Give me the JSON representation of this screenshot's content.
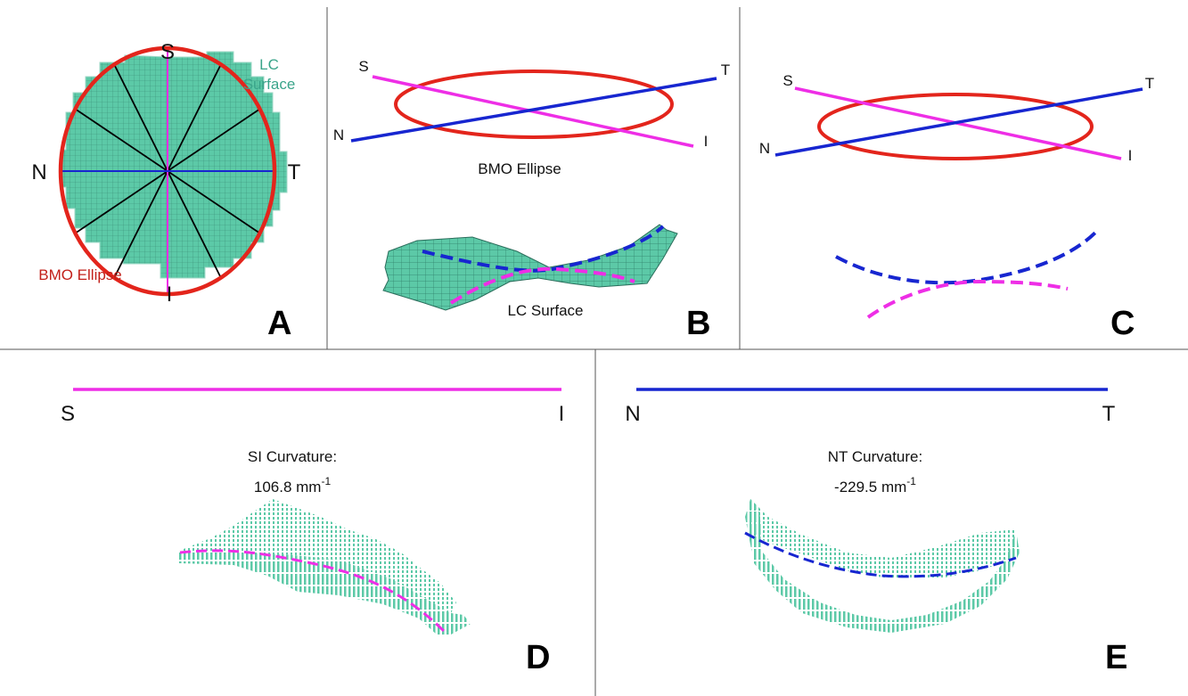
{
  "colors": {
    "lc_fill": "#5cc9a7",
    "lc_edge": "#3a8f78",
    "bmo_red": "#e3251c",
    "bmo_text": "#c2201a",
    "si_magenta": "#ee2ee6",
    "nt_blue": "#1726d0",
    "lc_text": "#3aa48a"
  },
  "panel_a": {
    "label_S": "S",
    "label_N": "N",
    "label_T": "T",
    "label_I": "I",
    "lc_surface_line1": "LC",
    "lc_surface_line2": "Surface",
    "bmo_ellipse": "BMO Ellipse",
    "letter": "A"
  },
  "panel_b": {
    "label_S": "S",
    "label_T": "T",
    "label_N": "N",
    "label_I": "I",
    "bmo_ellipse": "BMO Ellipse",
    "lc_surface": "LC Surface",
    "letter": "B"
  },
  "panel_c": {
    "label_S": "S",
    "label_T": "T",
    "label_N": "N",
    "label_I": "I",
    "letter": "C"
  },
  "panel_d": {
    "label_S": "S",
    "label_I": "I",
    "curv_title": "SI Curvature:",
    "curv_value": "106.8 mm",
    "curv_exp": "-1",
    "letter": "D"
  },
  "panel_e": {
    "label_N": "N",
    "label_T": "T",
    "curv_title": "NT Curvature:",
    "curv_value": "-229.5 mm",
    "curv_exp": "-1",
    "letter": "E"
  }
}
